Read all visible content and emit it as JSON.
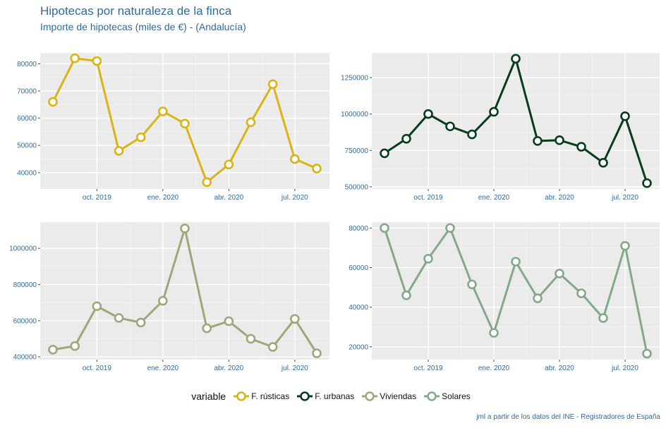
{
  "header": {
    "title": "Hipotecas por naturaleza de la finca",
    "subtitle": "Importe de hipotecas (miles de €) - (Andalucía)"
  },
  "legend": {
    "title": "variable",
    "items": [
      {
        "label": "F. rústicas",
        "color": "#d8b514"
      },
      {
        "label": "F. urbanas",
        "color": "#083c1c"
      },
      {
        "label": "Viviendas",
        "color": "#a2a57a"
      },
      {
        "label": "Solares",
        "color": "#84a88a"
      }
    ]
  },
  "caption": "jml a partir de los datos del INE - Registradores de España",
  "chart_data": [
    {
      "type": "line",
      "name": "F. rústicas",
      "color": "#d8b514",
      "x_index": [
        0,
        1,
        2,
        3,
        4,
        5,
        6,
        7,
        8,
        9,
        10,
        11,
        12
      ],
      "values": [
        66000,
        82000,
        81000,
        48000,
        53000,
        62500,
        58000,
        36500,
        43000,
        58500,
        72500,
        45000,
        41500
      ],
      "xticks": [
        {
          "i": 2,
          "label": "oct. 2019"
        },
        {
          "i": 5,
          "label": "ene. 2020"
        },
        {
          "i": 8,
          "label": "abr. 2020"
        },
        {
          "i": 11,
          "label": "jul. 2020"
        }
      ],
      "yticks": [
        {
          "v": 40000,
          "label": "40000"
        },
        {
          "v": 50000,
          "label": "50000"
        },
        {
          "v": 60000,
          "label": "60000"
        },
        {
          "v": 70000,
          "label": "70000"
        },
        {
          "v": 80000,
          "label": "80000"
        }
      ],
      "ylim": [
        34000,
        84000
      ]
    },
    {
      "type": "line",
      "name": "F. urbanas",
      "color": "#083c1c",
      "x_index": [
        0,
        1,
        2,
        3,
        4,
        5,
        6,
        7,
        8,
        9,
        10,
        11,
        12
      ],
      "values": [
        730000,
        830000,
        1000000,
        915000,
        860000,
        1015000,
        1380000,
        815000,
        820000,
        775000,
        665000,
        985000,
        525000
      ],
      "xticks": [
        {
          "i": 2,
          "label": "oct. 2019"
        },
        {
          "i": 5,
          "label": "ene. 2020"
        },
        {
          "i": 8,
          "label": "abr. 2020"
        },
        {
          "i": 11,
          "label": "jul. 2020"
        }
      ],
      "yticks": [
        {
          "v": 500000,
          "label": "500000"
        },
        {
          "v": 750000,
          "label": "750000"
        },
        {
          "v": 1000000,
          "label": "1000000"
        },
        {
          "v": 1250000,
          "label": "1250000"
        }
      ],
      "ylim": [
        485000,
        1420000
      ]
    },
    {
      "type": "line",
      "name": "Viviendas",
      "color": "#a2a57a",
      "x_index": [
        0,
        1,
        2,
        3,
        4,
        5,
        6,
        7,
        8,
        9,
        10,
        11,
        12
      ],
      "values": [
        440000,
        460000,
        680000,
        615000,
        590000,
        710000,
        1110000,
        558000,
        597000,
        500000,
        455000,
        610000,
        420000
      ],
      "xticks": [
        {
          "i": 2,
          "label": "oct. 2019"
        },
        {
          "i": 5,
          "label": "ene. 2020"
        },
        {
          "i": 8,
          "label": "abr. 2020"
        },
        {
          "i": 11,
          "label": "jul. 2020"
        }
      ],
      "yticks": [
        {
          "v": 400000,
          "label": "400000"
        },
        {
          "v": 600000,
          "label": "600000"
        },
        {
          "v": 800000,
          "label": "800000"
        },
        {
          "v": 1000000,
          "label": "1000000"
        }
      ],
      "ylim": [
        385000,
        1145000
      ]
    },
    {
      "type": "line",
      "name": "Solares",
      "color": "#84a88a",
      "x_index": [
        0,
        1,
        2,
        3,
        4,
        5,
        6,
        7,
        8,
        9,
        10,
        11,
        12
      ],
      "values": [
        80000,
        46000,
        64500,
        80000,
        51500,
        27000,
        63000,
        44500,
        57000,
        47000,
        34500,
        71000,
        16500
      ],
      "xticks": [
        {
          "i": 2,
          "label": "oct. 2019"
        },
        {
          "i": 5,
          "label": "ene. 2020"
        },
        {
          "i": 8,
          "label": "abr. 2020"
        },
        {
          "i": 11,
          "label": "jul. 2020"
        }
      ],
      "yticks": [
        {
          "v": 20000,
          "label": "20000"
        },
        {
          "v": 40000,
          "label": "40000"
        },
        {
          "v": 60000,
          "label": "60000"
        },
        {
          "v": 80000,
          "label": "80000"
        }
      ],
      "ylim": [
        13500,
        83000
      ]
    }
  ]
}
